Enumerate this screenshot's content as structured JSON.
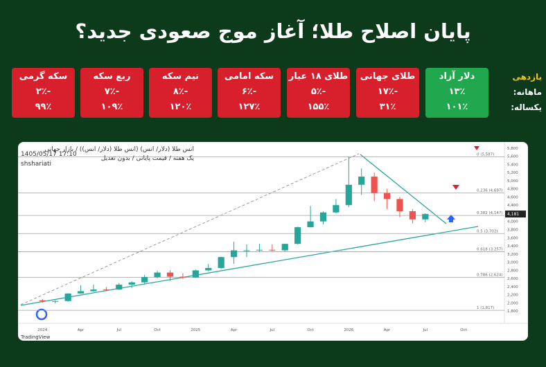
{
  "title": "پایان اصلاح طلا؛ آغاز موج صعودی جدید؟",
  "row_labels": [
    "بازدهی",
    "ماهانه:",
    "یکساله:"
  ],
  "cards": [
    {
      "name": "دلار آزاد",
      "monthly": "۱۳٪",
      "yearly": "۱۰۱٪",
      "color": "#21a84f"
    },
    {
      "name": "طلای جهانی",
      "monthly": "-۱۷٪",
      "yearly": "۳۱٪",
      "color": "#d7202c"
    },
    {
      "name": "طلای ۱۸ عیار",
      "monthly": "-۵٪",
      "yearly": "۱۵۵٪",
      "color": "#d7202c"
    },
    {
      "name": "سکه امامی",
      "monthly": "-۶٪",
      "yearly": "۱۲۷٪",
      "color": "#d7202c"
    },
    {
      "name": "نیم سکه",
      "monthly": "-۸٪",
      "yearly": "۱۲۰٪",
      "color": "#d7202c"
    },
    {
      "name": "ربع سکه",
      "monthly": "-۷٪",
      "yearly": "۱۰۹٪",
      "color": "#d7202c"
    },
    {
      "name": "سکه گرمی",
      "monthly": "-۲٪",
      "yearly": "۹۹٪",
      "color": "#d7202c"
    }
  ],
  "chart_data": {
    "type": "candlestick",
    "header": [
      "انس طلا (دلار/ انس) (انس طلا (دلار/ انس)) / بازار جهانی",
      "یک هفته / قیمت پایانی / بدون تعدیل",
      "1405/05/17 17:10",
      "shshariati"
    ],
    "footer": "TradingView",
    "x": [
      0,
      1,
      2,
      3,
      4,
      5,
      6,
      7,
      8,
      9,
      10,
      11,
      12,
      13,
      14,
      15,
      16,
      17,
      18,
      19,
      20,
      21,
      22,
      23,
      24,
      25,
      26,
      27,
      28,
      29,
      30
    ],
    "open": [
      2063,
      2040,
      2044,
      2230,
      2286,
      2327,
      2326,
      2447,
      2503,
      2634,
      2744,
      2643,
      2624,
      2798,
      2857,
      3124,
      3289,
      3289,
      3303,
      3290,
      3448,
      3858,
      4000,
      4220,
      4400,
      4900,
      5100,
      4700,
      4550,
      4250,
      4050
    ],
    "high": [
      2088,
      2065,
      2236,
      2431,
      2450,
      2387,
      2483,
      2531,
      2685,
      2790,
      2801,
      2726,
      2817,
      2956,
      3128,
      3500,
      3435,
      3452,
      3439,
      3453,
      3871,
      4381,
      4245,
      4550,
      5587,
      5300,
      5200,
      4800,
      4600,
      4300,
      4200
    ],
    "low": [
      2002,
      1984,
      2030,
      2228,
      2277,
      2286,
      2318,
      2364,
      2471,
      2603,
      2536,
      2583,
      2614,
      2772,
      2833,
      2957,
      3121,
      3247,
      3268,
      3268,
      3436,
      3850,
      3930,
      4200,
      4350,
      4650,
      4500,
      4300,
      4100,
      3950,
      3980
    ],
    "close": [
      2040,
      2044,
      2230,
      2286,
      2327,
      2326,
      2447,
      2503,
      2634,
      2744,
      2643,
      2624,
      2798,
      2857,
      3124,
      3289,
      3289,
      3303,
      3290,
      3448,
      3858,
      4000,
      4220,
      4400,
      4900,
      5100,
      4700,
      4550,
      4250,
      4050,
      4181
    ],
    "up_color": "#26a69a",
    "down_color": "#ef5350",
    "xlim": [
      -1.7,
      36.2
    ],
    "xticks": [
      {
        "value": 0,
        "label": "2024"
      },
      {
        "value": 3,
        "label": "Apr"
      },
      {
        "value": 6,
        "label": "Jul"
      },
      {
        "value": 9,
        "label": "Oct"
      },
      {
        "value": 12,
        "label": "2025"
      },
      {
        "value": 15,
        "label": "Apr"
      },
      {
        "value": 18,
        "label": "Jul"
      },
      {
        "value": 21,
        "label": "Oct"
      },
      {
        "value": 24,
        "label": "2026"
      },
      {
        "value": 27,
        "label": "Apr"
      },
      {
        "value": 30,
        "label": "Jul"
      },
      {
        "value": 33,
        "label": "Oct"
      }
    ],
    "ylim": [
      1700,
      5900
    ],
    "yticks": [
      {
        "value": 1800,
        "label": "1,800"
      },
      {
        "value": 2000,
        "label": "2,000"
      },
      {
        "value": 2200,
        "label": "2,200"
      },
      {
        "value": 2400,
        "label": "2,400"
      },
      {
        "value": 2600,
        "label": "2,600"
      },
      {
        "value": 2800,
        "label": "2,800"
      },
      {
        "value": 3000,
        "label": "3,000"
      },
      {
        "value": 3200,
        "label": "3,200"
      },
      {
        "value": 3400,
        "label": "3,400"
      },
      {
        "value": 3600,
        "label": "3,600"
      },
      {
        "value": 3800,
        "label": "3,800"
      },
      {
        "value": 4000,
        "label": "4,000"
      },
      {
        "value": 4200,
        "label": "4,200"
      },
      {
        "value": 4400,
        "label": "4,400"
      },
      {
        "value": 4600,
        "label": "4,600"
      },
      {
        "value": 4800,
        "label": "4,800"
      },
      {
        "value": 5000,
        "label": "5,000"
      },
      {
        "value": 5200,
        "label": "5,200"
      },
      {
        "value": 5400,
        "label": "5,400"
      },
      {
        "value": 5600,
        "label": "5,600"
      },
      {
        "value": 5800,
        "label": "5,800"
      }
    ],
    "fib_levels": [
      {
        "value": 5587,
        "label": "0 (5,587)"
      },
      {
        "value": 4697,
        "label": "0.236 (4,697)"
      },
      {
        "value": 4147,
        "label": "0.382 (4,147)"
      },
      {
        "value": 3702,
        "label": "0.5 (3,702)"
      },
      {
        "value": 3257,
        "label": "0.618 (3,257)"
      },
      {
        "value": 2624,
        "label": "0.786 (2,624)"
      },
      {
        "value": 1817,
        "label": "1 (1,817)"
      }
    ],
    "last_price": {
      "value": 4181,
      "label": "4,181"
    }
  }
}
